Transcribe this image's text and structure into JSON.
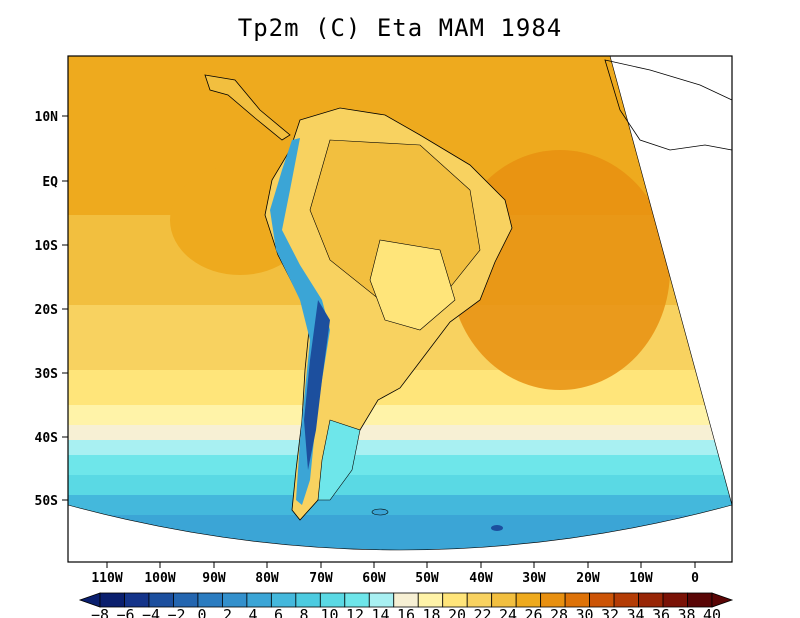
{
  "title": "Tp2m (C) Eta MAM 1984",
  "lat_ticks": [
    "10N",
    "EQ",
    "10S",
    "20S",
    "30S",
    "40S",
    "50S"
  ],
  "lon_ticks": [
    "110W",
    "100W",
    "90W",
    "80W",
    "70W",
    "60W",
    "50W",
    "40W",
    "30W",
    "20W",
    "10W",
    "0"
  ],
  "colorbar": {
    "labels": [
      "−8",
      "−6",
      "−4",
      "−2",
      "0",
      "2",
      "4",
      "6",
      "8",
      "10",
      "12",
      "14",
      "16",
      "18",
      "20",
      "22",
      "24",
      "26",
      "28",
      "30",
      "32",
      "34",
      "36",
      "38",
      "40"
    ],
    "colors": [
      "#0a1f6e",
      "#14348a",
      "#1c4f9e",
      "#2466b0",
      "#2b7cc0",
      "#3390cc",
      "#3ba5d6",
      "#44b8dc",
      "#4ccbe0",
      "#5ad9e4",
      "#6ee6ea",
      "#a8f0f2",
      "#f7f0d4",
      "#fff3a8",
      "#ffe57a",
      "#f8d260",
      "#f2bf3f",
      "#eeaa1e",
      "#e89010",
      "#dd7208",
      "#cc5406",
      "#b43c05",
      "#982606",
      "#7a1206",
      "#5a0606"
    ]
  },
  "chart_data": {
    "type": "heatmap",
    "title": "Tp2m (C) Eta MAM 1984",
    "variable": "Tp2m",
    "units": "C",
    "model": "Eta",
    "season": "MAM",
    "year": 1984,
    "x_tick_labels": [
      "110W",
      "100W",
      "90W",
      "80W",
      "70W",
      "60W",
      "50W",
      "40W",
      "30W",
      "20W",
      "10W",
      "0"
    ],
    "y_tick_labels": [
      "10N",
      "EQ",
      "10S",
      "20S",
      "30S",
      "40S",
      "50S"
    ],
    "color_levels": [
      -8,
      -6,
      -4,
      -2,
      0,
      2,
      4,
      6,
      8,
      10,
      12,
      14,
      16,
      18,
      20,
      22,
      24,
      26,
      28,
      30,
      32,
      34,
      36,
      38,
      40
    ],
    "approx_zonal_bands": [
      {
        "lat": 10,
        "value": 27
      },
      {
        "lat": 0,
        "value": 27
      },
      {
        "lat": -10,
        "value": 27
      },
      {
        "lat": -20,
        "value": 25
      },
      {
        "lat": -30,
        "value": 22
      },
      {
        "lat": -38,
        "value": 17
      },
      {
        "lat": -45,
        "value": 12
      },
      {
        "lat": -52,
        "value": 8
      }
    ]
  }
}
